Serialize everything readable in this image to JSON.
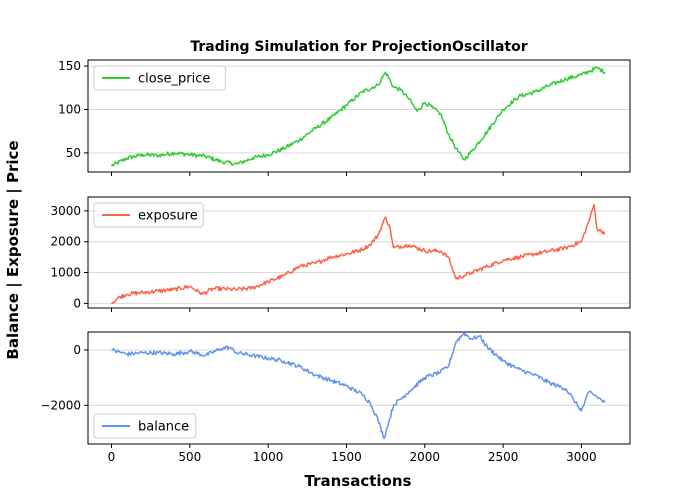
{
  "title": "Trading Simulation for ProjectionOscillator",
  "xlabel": "Transactions",
  "ylabel": "Balance | Exposure | Price",
  "chart_data": [
    {
      "type": "line",
      "series": [
        {
          "name": "close_price",
          "color": "#32cd32",
          "x": [
            0,
            100,
            200,
            300,
            400,
            500,
            600,
            700,
            800,
            900,
            1000,
            1100,
            1200,
            1300,
            1400,
            1500,
            1600,
            1700,
            1750,
            1800,
            1850,
            1900,
            1950,
            2000,
            2050,
            2100,
            2150,
            2200,
            2250,
            2300,
            2400,
            2500,
            2600,
            2700,
            2800,
            2900,
            3000,
            3050,
            3100,
            3150
          ],
          "values": [
            35,
            44,
            48,
            47,
            50,
            48,
            46,
            40,
            37,
            44,
            48,
            55,
            65,
            78,
            90,
            105,
            120,
            128,
            143,
            126,
            122,
            112,
            98,
            108,
            102,
            95,
            72,
            55,
            42,
            52,
            75,
            100,
            115,
            120,
            128,
            135,
            140,
            144,
            148,
            143
          ]
        }
      ],
      "xlim": [
        -150,
        3310
      ],
      "ylim": [
        28,
        157
      ],
      "yticks": [
        50,
        100,
        150
      ],
      "ytick_labels": [
        "50",
        "100",
        "150"
      ],
      "grid": true,
      "legend": "upper-left"
    },
    {
      "type": "line",
      "series": [
        {
          "name": "exposure",
          "color": "#ff6347",
          "x": [
            0,
            50,
            100,
            200,
            300,
            400,
            500,
            580,
            650,
            800,
            900,
            1000,
            1100,
            1200,
            1300,
            1400,
            1500,
            1600,
            1650,
            1700,
            1750,
            1780,
            1800,
            1900,
            2000,
            2100,
            2150,
            2200,
            2250,
            2300,
            2400,
            2500,
            2600,
            2700,
            2800,
            2900,
            3000,
            3050,
            3080,
            3100,
            3150
          ],
          "values": [
            0,
            200,
            300,
            350,
            400,
            450,
            550,
            300,
            480,
            450,
            500,
            700,
            900,
            1200,
            1300,
            1500,
            1600,
            1750,
            1900,
            2200,
            2800,
            2400,
            1800,
            1900,
            1700,
            1700,
            1500,
            800,
            900,
            1000,
            1200,
            1400,
            1500,
            1600,
            1700,
            1800,
            2000,
            2700,
            3200,
            2400,
            2300
          ]
        }
      ],
      "xlim": [
        -150,
        3310
      ],
      "ylim": [
        -150,
        3450
      ],
      "yticks": [
        0,
        1000,
        2000,
        3000
      ],
      "ytick_labels": [
        "0",
        "1000",
        "2000",
        "3000"
      ],
      "grid": true,
      "legend": "upper-left"
    },
    {
      "type": "line",
      "series": [
        {
          "name": "balance",
          "color": "#6495ed",
          "x": [
            0,
            100,
            200,
            300,
            400,
            500,
            600,
            700,
            750,
            800,
            900,
            1000,
            1100,
            1200,
            1300,
            1400,
            1500,
            1600,
            1650,
            1700,
            1740,
            1760,
            1800,
            1900,
            2000,
            2100,
            2150,
            2200,
            2250,
            2300,
            2350,
            2400,
            2500,
            2600,
            2700,
            2800,
            2900,
            2950,
            3000,
            3050,
            3100,
            3150
          ],
          "values": [
            0,
            -150,
            -100,
            -100,
            -150,
            -50,
            -200,
            50,
            100,
            -100,
            -200,
            -300,
            -400,
            -600,
            -900,
            -1100,
            -1300,
            -1600,
            -1900,
            -2500,
            -3200,
            -2800,
            -2000,
            -1500,
            -1000,
            -800,
            -600,
            300,
            600,
            400,
            500,
            100,
            -400,
            -700,
            -900,
            -1200,
            -1400,
            -1800,
            -2200,
            -1500,
            -1700,
            -1900
          ]
        }
      ],
      "xlim": [
        -150,
        3310
      ],
      "ylim": [
        -3400,
        650
      ],
      "yticks": [
        -2000,
        0
      ],
      "ytick_labels": [
        "−2000",
        "0"
      ],
      "grid": true,
      "legend": "lower-left"
    }
  ],
  "xticks": [
    0,
    500,
    1000,
    1500,
    2000,
    2500,
    3000
  ],
  "xtick_labels": [
    "0",
    "500",
    "1000",
    "1500",
    "2000",
    "2500",
    "3000"
  ]
}
